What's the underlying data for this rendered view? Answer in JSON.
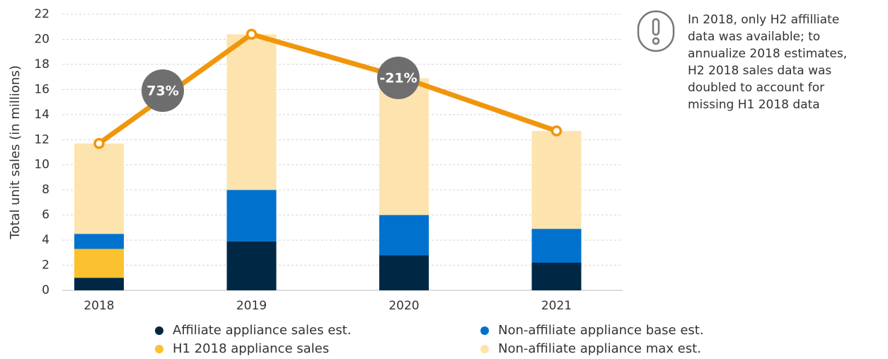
{
  "chart_data": {
    "type": "bar",
    "y_label": "Total unit sales (in millions)",
    "categories": [
      "2018",
      "2019",
      "2020",
      "2021"
    ],
    "series": [
      {
        "name": "Affiliate appliance sales est.",
        "color": "#002845",
        "values": [
          1.0,
          3.9,
          2.8,
          2.2
        ]
      },
      {
        "name": "H1 2018 appliance sales",
        "color": "#fbc12e",
        "values": [
          2.3,
          null,
          null,
          null
        ]
      },
      {
        "name": "Non-affiliate appliance base est.",
        "color": "#0072ce",
        "values": [
          1.2,
          4.1,
          3.2,
          2.7
        ]
      },
      {
        "name": "Non-affiliate appliance max est.",
        "color": "#fde4ae",
        "values": [
          7.2,
          12.4,
          10.9,
          7.8
        ]
      }
    ],
    "line": {
      "color": "#f0960c",
      "values": [
        11.7,
        20.4,
        16.9,
        12.7
      ]
    },
    "annotations": [
      "73%",
      "-21%"
    ],
    "note": [
      "In 2018, only H2 affilliate",
      "data was available; to",
      "annualize 2018 estimates,",
      "H2 2018 sales data was",
      "doubled to account for",
      "missing H1 2018 data"
    ],
    "ylim": [
      0,
      22
    ],
    "yticks": [
      0,
      2,
      4,
      6,
      8,
      10,
      12,
      14,
      16,
      18,
      20,
      22
    ],
    "grid": true
  }
}
